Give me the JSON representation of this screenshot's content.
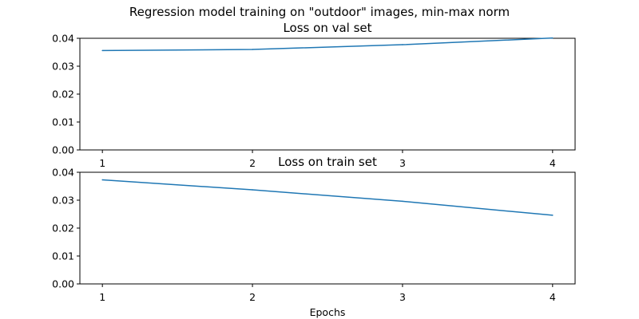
{
  "figure": {
    "title": "Regression model training on \"outdoor\" images, min-max norm"
  },
  "chart_data": [
    {
      "type": "line",
      "title": "Loss on val set",
      "xlabel": "",
      "ylabel": "",
      "x": [
        1,
        2,
        3,
        4
      ],
      "xticks": [
        "1",
        "2",
        "3",
        "4"
      ],
      "ylim": [
        0,
        0.04
      ],
      "yticks": [
        "0.00",
        "0.01",
        "0.02",
        "0.03",
        "0.04"
      ],
      "grid": false,
      "series": [
        {
          "values": [
            0.0356,
            0.036,
            0.0377,
            0.0401
          ],
          "color": "#1f77b4"
        }
      ]
    },
    {
      "type": "line",
      "title": "Loss on train set",
      "xlabel": "Epochs",
      "ylabel": "",
      "x": [
        1,
        2,
        3,
        4
      ],
      "xticks": [
        "1",
        "2",
        "3",
        "4"
      ],
      "ylim": [
        0,
        0.04
      ],
      "yticks": [
        "0.00",
        "0.01",
        "0.02",
        "0.03",
        "0.04"
      ],
      "grid": false,
      "series": [
        {
          "values": [
            0.0373,
            0.0337,
            0.0296,
            0.0246
          ],
          "color": "#1f77b4"
        }
      ]
    }
  ]
}
